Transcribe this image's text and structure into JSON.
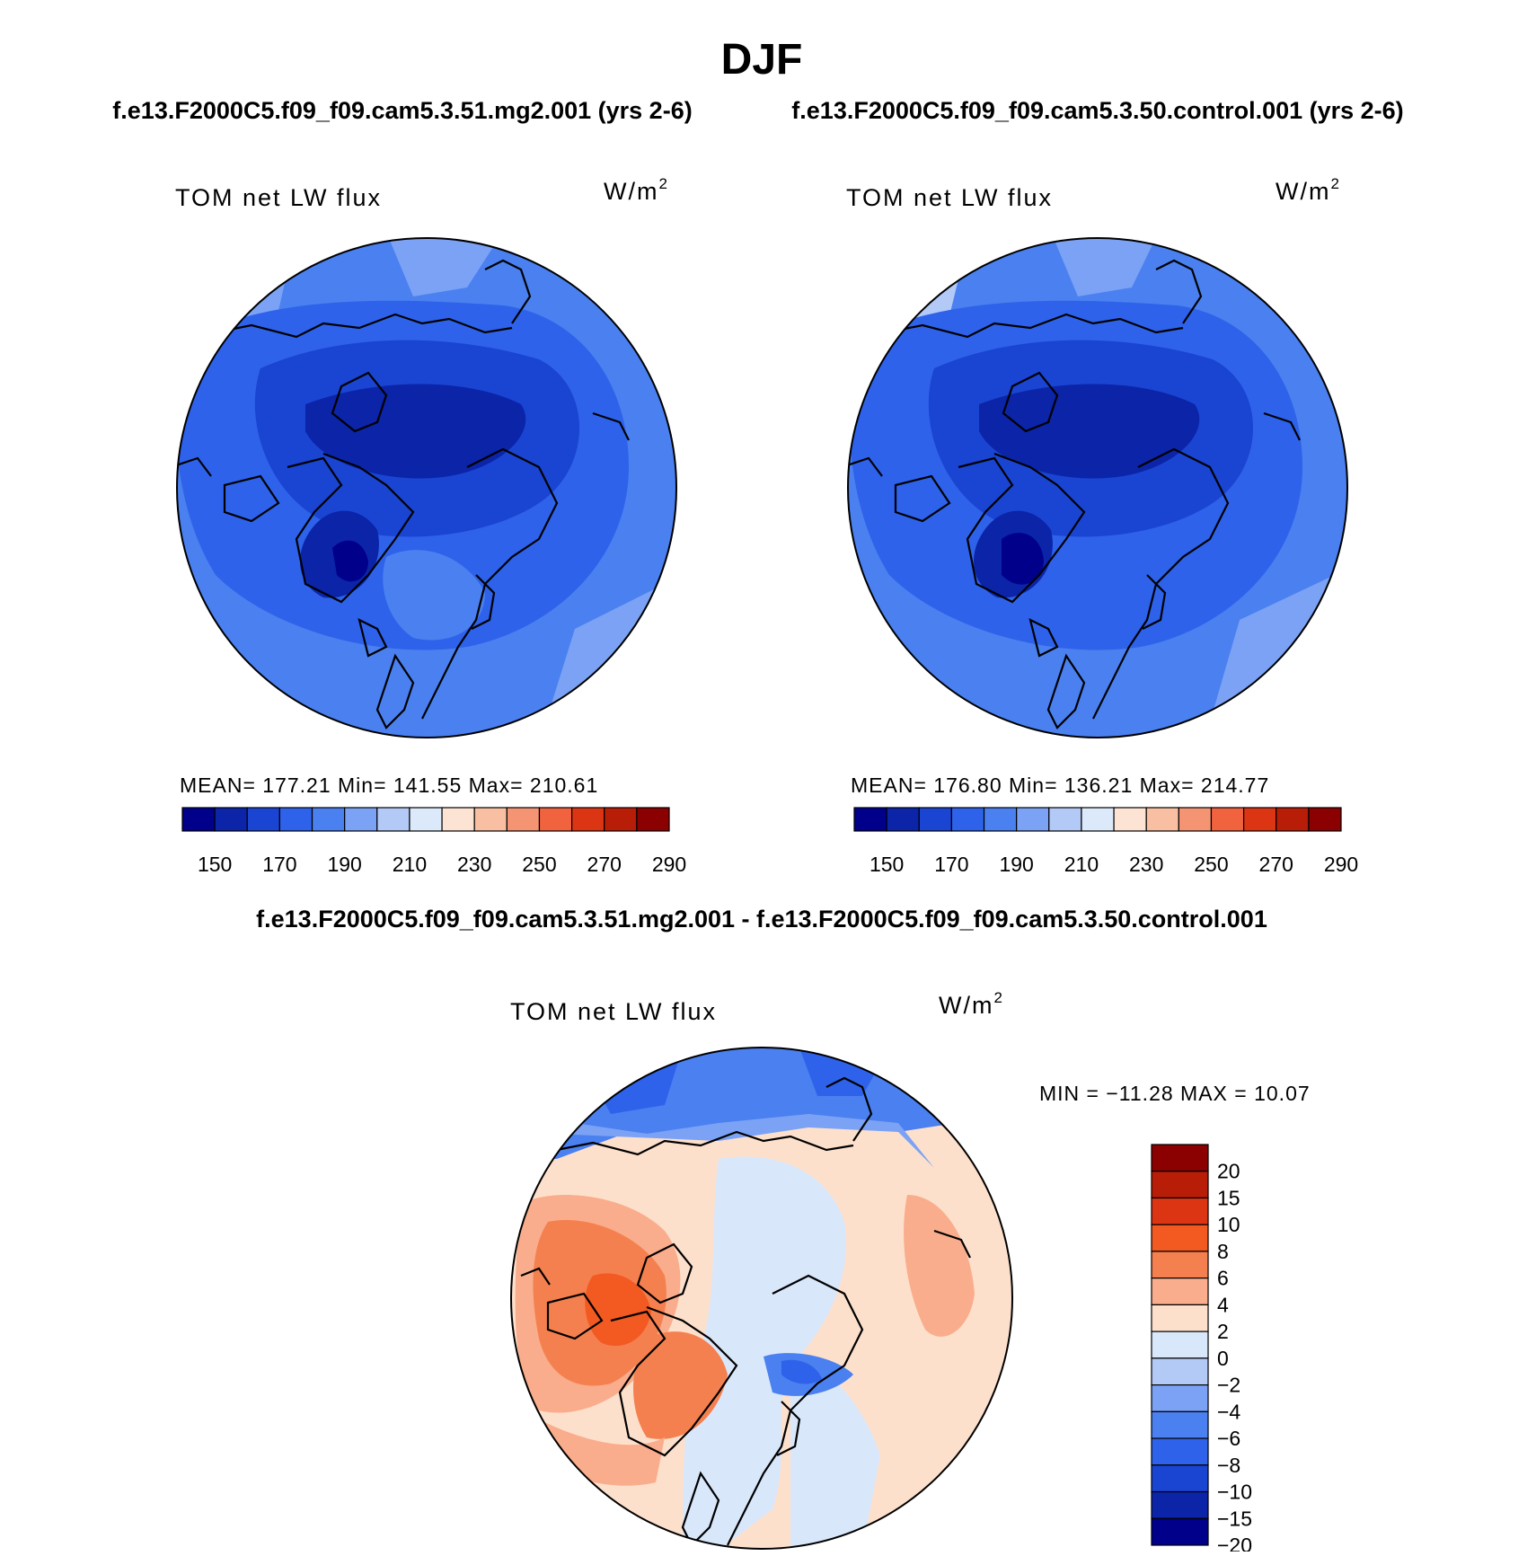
{
  "title": "DJF",
  "panels": [
    {
      "caption": "f.e13.F2000C5.f09_f09.cam5.3.51.mg2.001 (yrs 2-6)",
      "variable": "TOM net LW flux",
      "units": "W/m",
      "units_exp": "2",
      "stats": "MEAN= 177.21   Min= 141.55   Max= 210.61",
      "colorbar_labels": [
        "150",
        "170",
        "190",
        "210",
        "230",
        "250",
        "270",
        "290"
      ]
    },
    {
      "caption": "f.e13.F2000C5.f09_f09.cam5.3.50.control.001 (yrs 2-6)",
      "variable": "TOM net LW flux",
      "units": "W/m",
      "units_exp": "2",
      "stats": "MEAN= 176.80   Min= 136.21   Max= 214.77",
      "colorbar_labels": [
        "150",
        "170",
        "190",
        "210",
        "230",
        "250",
        "270",
        "290"
      ]
    }
  ],
  "difference": {
    "caption": "f.e13.F2000C5.f09_f09.cam5.3.51.mg2.001 - f.e13.F2000C5.f09_f09.cam5.3.50.control.001",
    "variable": "TOM net LW flux",
    "units": "W/m",
    "units_exp": "2",
    "minmax": "MIN = −11.28  MAX =   10.07",
    "colorbar_labels": [
      "20",
      "15",
      "10",
      "8",
      "6",
      "4",
      "2",
      "0",
      "−2",
      "−4",
      "−6",
      "−8",
      "−10",
      "−15",
      "−20"
    ]
  },
  "palettes": {
    "absolute": [
      "#00008b",
      "#0b24a8",
      "#1a44d2",
      "#2e62ea",
      "#4a80f0",
      "#7ba2f4",
      "#b3caf7",
      "#dce9fb",
      "#fde3d3",
      "#f9bfa2",
      "#f59472",
      "#f1623f",
      "#dc3514",
      "#b81d08",
      "#8b0000"
    ],
    "difference": [
      "#8b0000",
      "#b81d08",
      "#dc3514",
      "#f25a22",
      "#f5804f",
      "#f9ad8c",
      "#fde0cc",
      "#d9e7fb",
      "#b3caf7",
      "#7ba2f4",
      "#4a80f0",
      "#2e62ea",
      "#1a44d2",
      "#0b24a8",
      "#00008b"
    ]
  }
}
